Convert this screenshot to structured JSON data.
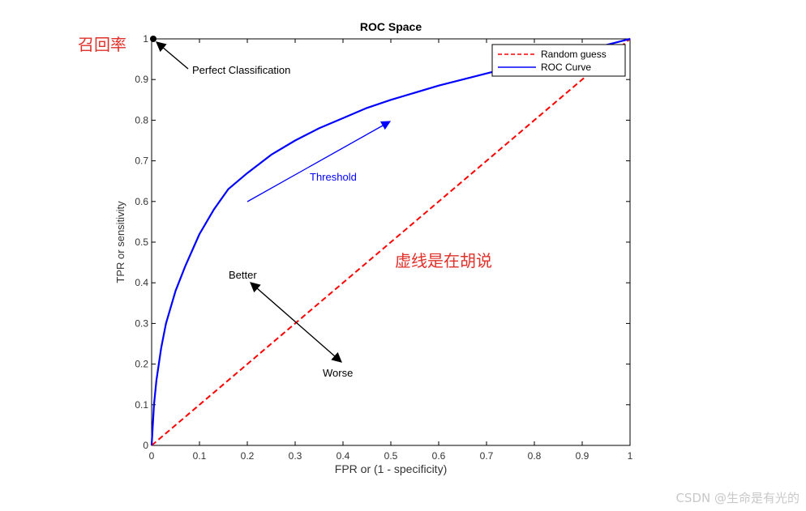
{
  "chart_data": {
    "type": "line",
    "title": "ROC Space",
    "xlabel": "FPR or (1 - specificity)",
    "ylabel": "TPR or sensitivity",
    "xlim": [
      0,
      1
    ],
    "ylim": [
      0,
      1
    ],
    "xticks": [
      "0",
      "0.1",
      "0.2",
      "0.3",
      "0.4",
      "0.5",
      "0.6",
      "0.7",
      "0.8",
      "0.9",
      "1"
    ],
    "yticks": [
      "0",
      "0.1",
      "0.2",
      "0.3",
      "0.4",
      "0.5",
      "0.6",
      "0.7",
      "0.8",
      "0.9",
      "1"
    ],
    "grid": false,
    "legend_position": "top-right",
    "series": [
      {
        "name": "Random guess",
        "style": "dashed",
        "color": "#ff0000",
        "x": [
          0,
          1
        ],
        "y": [
          0,
          1
        ]
      },
      {
        "name": "ROC Curve",
        "style": "solid",
        "color": "#0000ff",
        "x": [
          0,
          0.005,
          0.01,
          0.02,
          0.03,
          0.05,
          0.07,
          0.1,
          0.13,
          0.16,
          0.2,
          0.25,
          0.3,
          0.35,
          0.4,
          0.45,
          0.5,
          0.6,
          0.7,
          0.8,
          0.9,
          1
        ],
        "y": [
          0,
          0.1,
          0.16,
          0.24,
          0.3,
          0.38,
          0.44,
          0.52,
          0.58,
          0.63,
          0.67,
          0.715,
          0.75,
          0.78,
          0.805,
          0.83,
          0.85,
          0.885,
          0.915,
          0.945,
          0.97,
          1
        ]
      }
    ],
    "annotations": {
      "perfect": "Perfect Classification",
      "threshold": "Threshold",
      "better": "Better",
      "worse": "Worse"
    }
  },
  "overlay": {
    "recall_label": "召回率",
    "dashed_note": "虚线是在胡说",
    "watermark": "CSDN @生命是有光的",
    "accent_color": "#e0302a"
  }
}
